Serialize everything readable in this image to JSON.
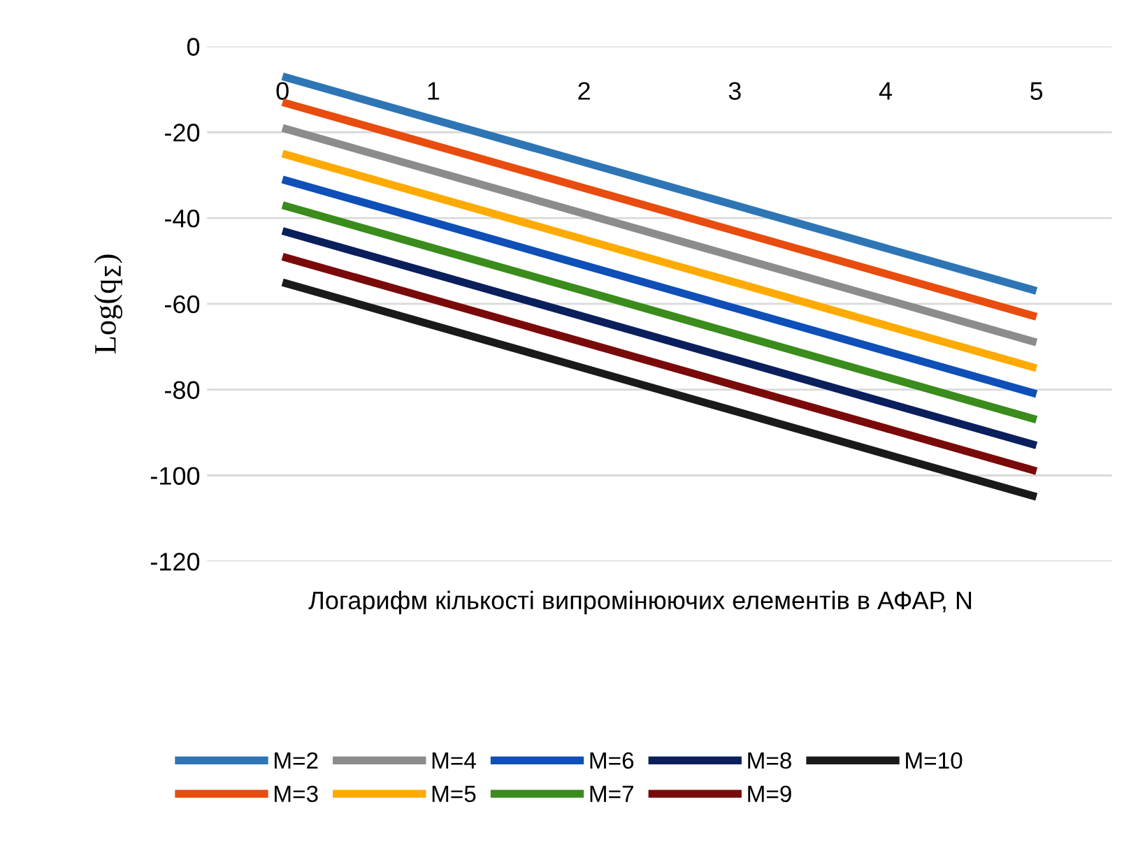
{
  "chart_data": {
    "type": "line",
    "xlabel": "Логарифм кількості випромінюючих елементів в АФАР, N",
    "ylabel": "Log(q$_{Σ}$)",
    "categories": [
      "0",
      "1",
      "2",
      "3",
      "4",
      "5"
    ],
    "series": [
      {
        "name": "M=2",
        "color": "#2e75b6",
        "values": [
          -7,
          -17,
          -27,
          -37,
          -47,
          -57
        ]
      },
      {
        "name": "M=3",
        "color": "#e84c0e",
        "values": [
          -13,
          -23,
          -33,
          -43,
          -53,
          -63
        ]
      },
      {
        "name": "M=4",
        "color": "#8c8c8c",
        "values": [
          -19,
          -29,
          -39,
          -49,
          -59,
          -69
        ]
      },
      {
        "name": "M=5",
        "color": "#ffaa00",
        "values": [
          -25,
          -35,
          -45,
          -55,
          -65,
          -75
        ]
      },
      {
        "name": "M=6",
        "color": "#0e4fb8",
        "values": [
          -31,
          -41,
          -51,
          -61,
          -71,
          -81
        ]
      },
      {
        "name": "M=7",
        "color": "#3a8c1c",
        "values": [
          -37,
          -47,
          -57,
          -67,
          -77,
          -87
        ]
      },
      {
        "name": "M=8",
        "color": "#0a1f5c",
        "values": [
          -43,
          -53,
          -63,
          -73,
          -83,
          -93
        ]
      },
      {
        "name": "M=9",
        "color": "#7a0a0a",
        "values": [
          -49,
          -59,
          -69,
          -79,
          -89,
          -99
        ]
      },
      {
        "name": "M=10",
        "color": "#1a1a1a",
        "values": [
          -55,
          -65,
          -75,
          -85,
          -95,
          -105
        ]
      }
    ],
    "ylim": [
      -120,
      0
    ],
    "yticks": [
      -120,
      -100,
      -80,
      -60,
      -40,
      -20,
      0
    ],
    "grid": "y",
    "legend": "bottom",
    "marker": "none",
    "line_style": "solid"
  }
}
